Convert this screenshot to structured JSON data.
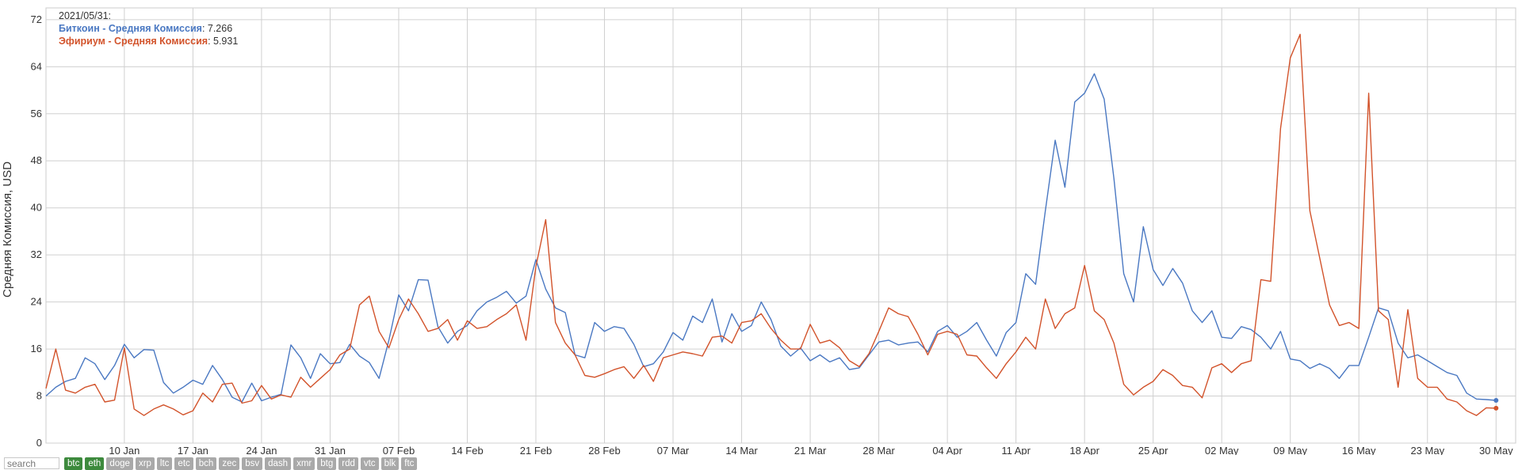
{
  "chart_data": {
    "type": "line",
    "ylabel": "Средняя Комиссия, USD",
    "ylim": [
      0,
      74
    ],
    "yticks": [
      0,
      8,
      16,
      24,
      32,
      40,
      48,
      56,
      64,
      72
    ],
    "xlim": [
      "2021-01-02",
      "2021-06-01"
    ],
    "xticks": [
      {
        "date": "2021-01-10",
        "label": "10 Jan"
      },
      {
        "date": "2021-01-17",
        "label": "17 Jan"
      },
      {
        "date": "2021-01-24",
        "label": "24 Jan"
      },
      {
        "date": "2021-01-31",
        "label": "31 Jan"
      },
      {
        "date": "2021-02-07",
        "label": "07 Feb"
      },
      {
        "date": "2021-02-14",
        "label": "14 Feb"
      },
      {
        "date": "2021-02-21",
        "label": "21 Feb"
      },
      {
        "date": "2021-02-28",
        "label": "28 Feb"
      },
      {
        "date": "2021-03-07",
        "label": "07 Mar"
      },
      {
        "date": "2021-03-14",
        "label": "14 Mar"
      },
      {
        "date": "2021-03-21",
        "label": "21 Mar"
      },
      {
        "date": "2021-03-28",
        "label": "28 Mar"
      },
      {
        "date": "2021-04-04",
        "label": "04 Apr"
      },
      {
        "date": "2021-04-11",
        "label": "11 Apr"
      },
      {
        "date": "2021-04-18",
        "label": "18 Apr"
      },
      {
        "date": "2021-04-25",
        "label": "25 Apr"
      },
      {
        "date": "2021-05-02",
        "label": "02 May"
      },
      {
        "date": "2021-05-09",
        "label": "09 May"
      },
      {
        "date": "2021-05-16",
        "label": "16 May"
      },
      {
        "date": "2021-05-23",
        "label": "23 May"
      },
      {
        "date": "2021-05-30",
        "label": "30 May"
      }
    ],
    "grid": true,
    "legend_position": "top-left",
    "legend": {
      "date": "2021/05/31:",
      "entries": [
        {
          "label": "Биткоин - Средняя Комиссия",
          "value": ": 7.266",
          "color": "#4a78c2"
        },
        {
          "label": "Эфириум - Средняя Комиссия",
          "value": ": 5.931",
          "color": "#d2532b"
        }
      ]
    },
    "x_start": "2021-01-02",
    "series": [
      {
        "key": "btc",
        "color": "#4a78c2",
        "values": [
          8.0,
          9.5,
          10.5,
          11.0,
          14.5,
          13.5,
          10.8,
          13.2,
          16.8,
          14.5,
          15.9,
          15.8,
          10.3,
          8.5,
          9.5,
          10.7,
          10.0,
          13.2,
          10.8,
          7.8,
          7.0,
          10.2,
          7.2,
          7.8,
          8.3,
          16.7,
          14.5,
          11.0,
          15.2,
          13.5,
          13.7,
          16.8,
          14.8,
          13.7,
          11.0,
          17.5,
          25.2,
          22.5,
          27.8,
          27.7,
          19.8,
          17.0,
          19.0,
          20.0,
          22.5,
          24.0,
          24.8,
          25.8,
          23.8,
          25.0,
          31.2,
          26.2,
          23.0,
          22.2,
          15.0,
          14.5,
          20.5,
          19.0,
          19.8,
          19.5,
          16.8,
          13.0,
          13.5,
          15.5,
          18.8,
          17.5,
          21.6,
          20.5,
          24.5,
          17.2,
          22.0,
          19.0,
          20.0,
          24.0,
          21.0,
          16.5,
          14.8,
          16.2,
          14.0,
          15.0,
          13.8,
          14.5,
          12.5,
          12.8,
          15.0,
          17.2,
          17.5,
          16.7,
          17.0,
          17.2,
          15.5,
          19.0,
          20.0,
          18.0,
          19.0,
          20.5,
          17.5,
          14.8,
          18.8,
          20.5,
          28.8,
          27.0,
          39.5,
          51.5,
          43.5,
          58.0,
          59.5,
          62.8,
          58.5,
          45.0,
          28.8,
          24.0,
          36.8,
          29.5,
          26.8,
          29.7,
          27.2,
          22.5,
          20.5,
          22.5,
          18.0,
          17.8,
          19.8,
          19.3,
          18.0,
          16.0,
          19.0,
          14.3,
          14.0,
          12.7,
          13.5,
          12.7,
          11.0,
          13.2,
          13.2,
          18.0,
          23.0,
          22.5,
          17.0,
          14.5,
          15.0,
          14.0,
          13.0,
          12.0,
          11.5,
          8.5,
          7.5,
          7.4,
          7.266
        ]
      },
      {
        "key": "eth",
        "color": "#d2532b",
        "values": [
          9.3,
          16.0,
          9.0,
          8.5,
          9.5,
          10.0,
          7.0,
          7.3,
          16.2,
          5.8,
          4.7,
          5.8,
          6.5,
          5.8,
          4.8,
          5.5,
          8.5,
          7.0,
          10.0,
          10.2,
          6.8,
          7.2,
          9.8,
          7.5,
          8.2,
          7.8,
          11.2,
          9.5,
          11.0,
          12.5,
          15.0,
          16.0,
          23.5,
          25.0,
          19.0,
          16.2,
          21.0,
          24.5,
          22.0,
          19.0,
          19.5,
          21.0,
          17.5,
          20.8,
          19.5,
          19.8,
          21.0,
          22.0,
          23.5,
          17.5,
          30.0,
          38.0,
          20.5,
          17.0,
          15.0,
          11.5,
          11.2,
          11.8,
          12.5,
          13.0,
          11.0,
          13.2,
          10.5,
          14.5,
          15.0,
          15.5,
          15.2,
          14.8,
          18.0,
          18.2,
          17.0,
          20.5,
          20.8,
          22.0,
          19.5,
          17.5,
          16.0,
          16.0,
          20.2,
          17.0,
          17.5,
          16.2,
          14.0,
          13.0,
          15.2,
          19.0,
          23.0,
          22.0,
          21.5,
          18.5,
          15.0,
          18.5,
          19.0,
          18.5,
          15.0,
          14.8,
          12.8,
          11.0,
          13.5,
          15.5,
          18.0,
          16.0,
          24.5,
          19.5,
          22.0,
          23.0,
          30.2,
          22.5,
          21.0,
          17.0,
          10.0,
          8.2,
          9.5,
          10.5,
          12.5,
          11.5,
          9.8,
          9.5,
          7.7,
          12.8,
          13.5,
          12.0,
          13.5,
          14.0,
          27.8,
          27.5,
          53.5,
          65.5,
          69.5,
          39.5,
          31.5,
          23.5,
          20.0,
          20.5,
          19.5,
          59.5,
          22.5,
          21.0,
          9.5,
          22.7,
          11.0,
          9.5,
          9.5,
          7.5,
          7.0,
          5.5,
          4.7,
          6.0,
          5.931
        ]
      }
    ]
  },
  "footer": {
    "search_placeholder": "search",
    "coins": [
      {
        "label": "btc",
        "active": true
      },
      {
        "label": "eth",
        "active": true
      },
      {
        "label": "doge",
        "active": false
      },
      {
        "label": "xrp",
        "active": false
      },
      {
        "label": "ltc",
        "active": false
      },
      {
        "label": "etc",
        "active": false
      },
      {
        "label": "bch",
        "active": false
      },
      {
        "label": "zec",
        "active": false
      },
      {
        "label": "bsv",
        "active": false
      },
      {
        "label": "dash",
        "active": false
      },
      {
        "label": "xmr",
        "active": false
      },
      {
        "label": "btg",
        "active": false
      },
      {
        "label": "rdd",
        "active": false
      },
      {
        "label": "vtc",
        "active": false
      },
      {
        "label": "blk",
        "active": false
      },
      {
        "label": "ftc",
        "active": false
      }
    ]
  }
}
